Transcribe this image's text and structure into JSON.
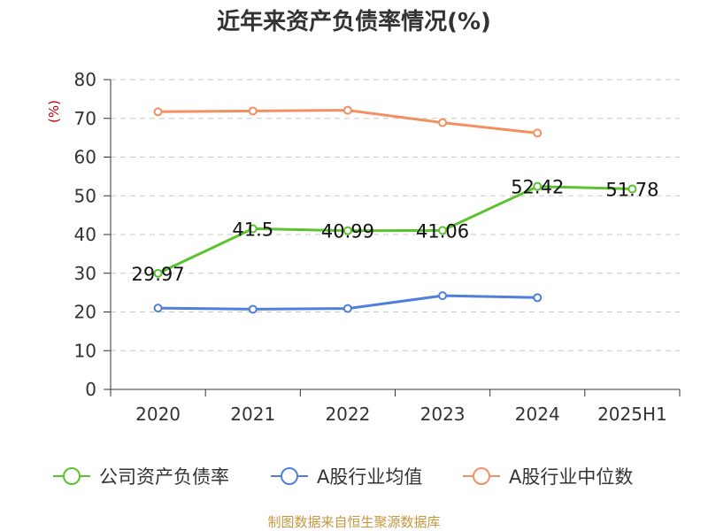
{
  "chart_data": {
    "type": "line",
    "title": "近年来资产负债率情况(%)",
    "ylabel": "(%)",
    "xlabel": "",
    "ylim": [
      0,
      80
    ],
    "yticks": [
      0,
      10,
      20,
      30,
      40,
      50,
      60,
      70,
      80
    ],
    "categories": [
      "2020",
      "2021",
      "2022",
      "2023",
      "2024",
      "2025H1"
    ],
    "grid": true,
    "legend_position": "bottom",
    "series": [
      {
        "name": "公司资产负债率",
        "color": "#5cc22e",
        "values": [
          29.97,
          41.5,
          40.99,
          41.06,
          52.42,
          51.78
        ],
        "labels": [
          "29.97",
          "41.5",
          "40.99",
          "41.06",
          "52.42",
          "51.78"
        ]
      },
      {
        "name": "A股行业均值",
        "color": "#4f7fd8",
        "values": [
          21.0,
          20.7,
          20.9,
          24.2,
          23.7,
          null
        ]
      },
      {
        "name": "A股行业中位数",
        "color": "#f39061",
        "values": [
          71.7,
          71.9,
          72.1,
          68.9,
          66.2,
          null
        ]
      }
    ],
    "source": "制图数据来自恒生聚源数据库"
  }
}
